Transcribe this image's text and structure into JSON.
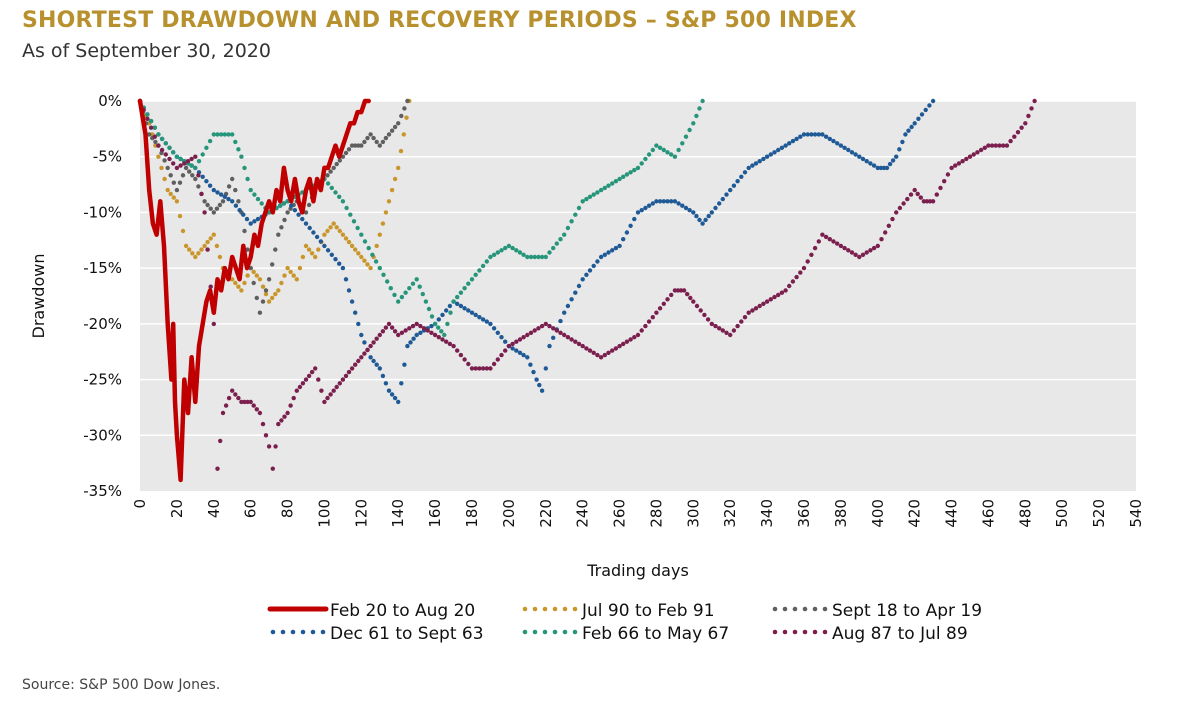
{
  "header": {
    "title": "SHORTEST DRAWDOWN AND RECOVERY PERIODS – S&P 500 INDEX",
    "subtitle": "As of September 30, 2020"
  },
  "footer": {
    "source": "S&P 500 Dow Jones."
  },
  "colors": {
    "title": "#b8912f",
    "plot_bg": "#e8e8e8",
    "gridline": "#ffffff",
    "feb20": "#c00000",
    "jul90": "#c9962b",
    "sept18": "#5f5f5f",
    "dec61": "#1f5a96",
    "feb66": "#26957a",
    "aug87": "#7a1f4e"
  },
  "chart_data": {
    "type": "line",
    "title": "SHORTEST DRAWDOWN AND RECOVERY PERIODS – S&P 500 INDEX",
    "xlabel": "Trading days",
    "ylabel": "Drawdown",
    "xlim": [
      0,
      540
    ],
    "ylim": [
      -35,
      0
    ],
    "x_ticks": [
      0,
      20,
      40,
      60,
      80,
      100,
      120,
      140,
      160,
      180,
      200,
      220,
      240,
      260,
      280,
      300,
      320,
      340,
      360,
      380,
      400,
      420,
      440,
      460,
      480,
      500,
      520,
      540
    ],
    "y_ticks": [
      0,
      -5,
      -10,
      -15,
      -20,
      -25,
      -30,
      -35
    ],
    "y_tick_labels": [
      "0%",
      "-5%",
      "-10%",
      "-15%",
      "-20%",
      "-25%",
      "-30%",
      "-35%"
    ],
    "grid": "horizontal",
    "legend_position": "bottom",
    "series": [
      {
        "name": "Feb 20 to Aug 20",
        "style": "solid",
        "color_key": "feb20",
        "points": [
          [
            0,
            0
          ],
          [
            3,
            -3
          ],
          [
            5,
            -8
          ],
          [
            7,
            -11
          ],
          [
            9,
            -12
          ],
          [
            11,
            -9
          ],
          [
            13,
            -13
          ],
          [
            15,
            -20
          ],
          [
            17,
            -25
          ],
          [
            18,
            -20
          ],
          [
            19,
            -27
          ],
          [
            20,
            -30
          ],
          [
            22,
            -34
          ],
          [
            24,
            -25
          ],
          [
            26,
            -28
          ],
          [
            28,
            -23
          ],
          [
            30,
            -27
          ],
          [
            32,
            -22
          ],
          [
            34,
            -20
          ],
          [
            36,
            -18
          ],
          [
            38,
            -17
          ],
          [
            40,
            -19
          ],
          [
            42,
            -16
          ],
          [
            44,
            -17
          ],
          [
            46,
            -15
          ],
          [
            48,
            -16
          ],
          [
            50,
            -14
          ],
          [
            52,
            -15
          ],
          [
            54,
            -16
          ],
          [
            56,
            -13
          ],
          [
            58,
            -15
          ],
          [
            60,
            -14
          ],
          [
            62,
            -12
          ],
          [
            64,
            -13
          ],
          [
            66,
            -11
          ],
          [
            68,
            -10
          ],
          [
            70,
            -9
          ],
          [
            72,
            -10
          ],
          [
            74,
            -8
          ],
          [
            76,
            -9
          ],
          [
            78,
            -6
          ],
          [
            80,
            -8
          ],
          [
            82,
            -9
          ],
          [
            84,
            -7
          ],
          [
            86,
            -9
          ],
          [
            88,
            -10
          ],
          [
            90,
            -8
          ],
          [
            92,
            -7
          ],
          [
            94,
            -9
          ],
          [
            96,
            -7
          ],
          [
            98,
            -8
          ],
          [
            100,
            -6
          ],
          [
            102,
            -6
          ],
          [
            104,
            -5
          ],
          [
            106,
            -4
          ],
          [
            108,
            -5
          ],
          [
            110,
            -4
          ],
          [
            112,
            -3
          ],
          [
            114,
            -2
          ],
          [
            116,
            -2
          ],
          [
            118,
            -1
          ],
          [
            120,
            -1
          ],
          [
            122,
            0
          ],
          [
            124,
            0
          ]
        ]
      },
      {
        "name": "Jul 90 to Feb 91",
        "style": "dotted",
        "color_key": "jul90",
        "points": [
          [
            0,
            0
          ],
          [
            5,
            -2
          ],
          [
            10,
            -5
          ],
          [
            15,
            -8
          ],
          [
            20,
            -9
          ],
          [
            25,
            -13
          ],
          [
            30,
            -14
          ],
          [
            35,
            -13
          ],
          [
            40,
            -12
          ],
          [
            45,
            -15
          ],
          [
            50,
            -16
          ],
          [
            55,
            -17
          ],
          [
            60,
            -15
          ],
          [
            65,
            -16
          ],
          [
            70,
            -18
          ],
          [
            75,
            -17
          ],
          [
            80,
            -15
          ],
          [
            85,
            -16
          ],
          [
            90,
            -13
          ],
          [
            95,
            -14
          ],
          [
            100,
            -12
          ],
          [
            105,
            -11
          ],
          [
            110,
            -12
          ],
          [
            115,
            -13
          ],
          [
            120,
            -14
          ],
          [
            125,
            -15
          ],
          [
            130,
            -12
          ],
          [
            135,
            -9
          ],
          [
            140,
            -6
          ],
          [
            143,
            -3
          ],
          [
            146,
            0
          ]
        ]
      },
      {
        "name": "Sept 18 to Apr 19",
        "style": "dotted",
        "color_key": "sept18",
        "points": [
          [
            0,
            0
          ],
          [
            5,
            -3
          ],
          [
            10,
            -4
          ],
          [
            15,
            -6
          ],
          [
            20,
            -8
          ],
          [
            25,
            -6
          ],
          [
            30,
            -7
          ],
          [
            35,
            -9
          ],
          [
            40,
            -10
          ],
          [
            45,
            -9
          ],
          [
            50,
            -7
          ],
          [
            55,
            -10
          ],
          [
            60,
            -15
          ],
          [
            65,
            -19
          ],
          [
            70,
            -16
          ],
          [
            75,
            -12
          ],
          [
            80,
            -10
          ],
          [
            85,
            -9
          ],
          [
            90,
            -10
          ],
          [
            95,
            -8
          ],
          [
            100,
            -7
          ],
          [
            105,
            -6
          ],
          [
            110,
            -5
          ],
          [
            115,
            -4
          ],
          [
            120,
            -4
          ],
          [
            125,
            -3
          ],
          [
            130,
            -4
          ],
          [
            135,
            -3
          ],
          [
            140,
            -2
          ],
          [
            145,
            0
          ]
        ]
      },
      {
        "name": "Dec 61 to Sept 63",
        "style": "dotted",
        "color_key": "dec61",
        "points": [
          [
            0,
            0
          ],
          [
            10,
            -3
          ],
          [
            20,
            -5
          ],
          [
            30,
            -6
          ],
          [
            40,
            -8
          ],
          [
            50,
            -9
          ],
          [
            60,
            -11
          ],
          [
            70,
            -10
          ],
          [
            80,
            -9
          ],
          [
            90,
            -11
          ],
          [
            100,
            -13
          ],
          [
            110,
            -15
          ],
          [
            115,
            -18
          ],
          [
            120,
            -21
          ],
          [
            125,
            -23
          ],
          [
            130,
            -24
          ],
          [
            135,
            -26
          ],
          [
            140,
            -27
          ],
          [
            145,
            -22
          ],
          [
            150,
            -21
          ],
          [
            160,
            -20
          ],
          [
            170,
            -18
          ],
          [
            180,
            -19
          ],
          [
            190,
            -20
          ],
          [
            200,
            -22
          ],
          [
            210,
            -23
          ],
          [
            215,
            -25
          ],
          [
            218,
            -26
          ],
          [
            222,
            -22
          ],
          [
            230,
            -19
          ],
          [
            240,
            -16
          ],
          [
            250,
            -14
          ],
          [
            260,
            -13
          ],
          [
            270,
            -10
          ],
          [
            280,
            -9
          ],
          [
            290,
            -9
          ],
          [
            300,
            -10
          ],
          [
            305,
            -11
          ],
          [
            310,
            -10
          ],
          [
            320,
            -8
          ],
          [
            330,
            -6
          ],
          [
            340,
            -5
          ],
          [
            350,
            -4
          ],
          [
            360,
            -3
          ],
          [
            370,
            -3
          ],
          [
            380,
            -4
          ],
          [
            390,
            -5
          ],
          [
            400,
            -6
          ],
          [
            405,
            -6
          ],
          [
            410,
            -5
          ],
          [
            415,
            -3
          ],
          [
            420,
            -2
          ],
          [
            430,
            0
          ]
        ]
      },
      {
        "name": "Feb 66 to May 67",
        "style": "dotted",
        "color_key": "feb66",
        "points": [
          [
            0,
            0
          ],
          [
            10,
            -3
          ],
          [
            20,
            -5
          ],
          [
            30,
            -6
          ],
          [
            40,
            -3
          ],
          [
            50,
            -3
          ],
          [
            55,
            -5
          ],
          [
            60,
            -8
          ],
          [
            70,
            -10
          ],
          [
            80,
            -9
          ],
          [
            90,
            -8
          ],
          [
            100,
            -7
          ],
          [
            110,
            -9
          ],
          [
            120,
            -12
          ],
          [
            130,
            -15
          ],
          [
            140,
            -18
          ],
          [
            150,
            -16
          ],
          [
            155,
            -18
          ],
          [
            160,
            -20
          ],
          [
            165,
            -21
          ],
          [
            170,
            -18
          ],
          [
            180,
            -16
          ],
          [
            190,
            -14
          ],
          [
            200,
            -13
          ],
          [
            210,
            -14
          ],
          [
            220,
            -14
          ],
          [
            230,
            -12
          ],
          [
            240,
            -9
          ],
          [
            250,
            -8
          ],
          [
            260,
            -7
          ],
          [
            270,
            -6
          ],
          [
            280,
            -4
          ],
          [
            290,
            -5
          ],
          [
            300,
            -2
          ],
          [
            305,
            0
          ]
        ]
      },
      {
        "name": "Aug 87 to Jul 89",
        "style": "dotted",
        "color_key": "aug87",
        "points": [
          [
            0,
            0
          ],
          [
            10,
            -4
          ],
          [
            20,
            -6
          ],
          [
            30,
            -5
          ],
          [
            35,
            -10
          ],
          [
            40,
            -20
          ],
          [
            42,
            -33
          ],
          [
            45,
            -28
          ],
          [
            50,
            -26
          ],
          [
            55,
            -27
          ],
          [
            60,
            -27
          ],
          [
            65,
            -28
          ],
          [
            70,
            -31
          ],
          [
            72,
            -33
          ],
          [
            75,
            -29
          ],
          [
            80,
            -28
          ],
          [
            85,
            -26
          ],
          [
            90,
            -25
          ],
          [
            95,
            -24
          ],
          [
            100,
            -27
          ],
          [
            105,
            -26
          ],
          [
            110,
            -25
          ],
          [
            115,
            -24
          ],
          [
            120,
            -23
          ],
          [
            125,
            -22
          ],
          [
            130,
            -21
          ],
          [
            135,
            -20
          ],
          [
            140,
            -21
          ],
          [
            150,
            -20
          ],
          [
            160,
            -21
          ],
          [
            170,
            -22
          ],
          [
            180,
            -24
          ],
          [
            190,
            -24
          ],
          [
            200,
            -22
          ],
          [
            210,
            -21
          ],
          [
            220,
            -20
          ],
          [
            230,
            -21
          ],
          [
            240,
            -22
          ],
          [
            250,
            -23
          ],
          [
            260,
            -22
          ],
          [
            270,
            -21
          ],
          [
            280,
            -19
          ],
          [
            290,
            -17
          ],
          [
            295,
            -17
          ],
          [
            300,
            -18
          ],
          [
            310,
            -20
          ],
          [
            320,
            -21
          ],
          [
            330,
            -19
          ],
          [
            340,
            -18
          ],
          [
            350,
            -17
          ],
          [
            360,
            -15
          ],
          [
            370,
            -12
          ],
          [
            380,
            -13
          ],
          [
            390,
            -14
          ],
          [
            400,
            -13
          ],
          [
            410,
            -10
          ],
          [
            420,
            -8
          ],
          [
            425,
            -9
          ],
          [
            430,
            -9
          ],
          [
            440,
            -6
          ],
          [
            450,
            -5
          ],
          [
            460,
            -4
          ],
          [
            470,
            -4
          ],
          [
            480,
            -2
          ],
          [
            485,
            0
          ]
        ]
      }
    ]
  }
}
